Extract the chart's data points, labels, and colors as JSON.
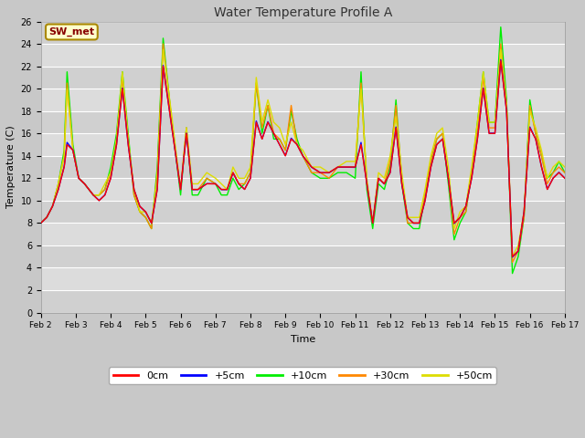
{
  "title": "Water Temperature Profile A",
  "xlabel": "Time",
  "ylabel": "Temperature (C)",
  "ylim": [
    0,
    26
  ],
  "background_color": "#d8d8d8",
  "plot_bg_color": "#d8d8d8",
  "series_colors": {
    "0cm": "#ff0000",
    "+5cm": "#0000ff",
    "+10cm": "#00ee00",
    "+30cm": "#ff8800",
    "+50cm": "#dddd00"
  },
  "xtick_labels": [
    "Feb 2",
    "Feb 3",
    "Feb 4",
    "Feb 5",
    "Feb 6",
    "Feb 7",
    "Feb 8",
    "Feb 9",
    "Feb 10",
    "Feb 11",
    "Feb 12",
    "Feb 13",
    "Feb 14",
    "Feb 15",
    "Feb 16",
    "Feb 17"
  ],
  "xtick_positions": [
    0,
    24,
    48,
    72,
    96,
    120,
    144,
    168,
    192,
    216,
    240,
    264,
    288,
    312,
    336,
    360
  ],
  "ytick_positions": [
    0,
    2,
    4,
    6,
    8,
    10,
    12,
    14,
    16,
    18,
    20,
    22,
    24,
    26
  ],
  "annotation_text": "SW_met",
  "annotation_bg": "#ffffcc",
  "annotation_border": "#aa8800",
  "annotation_text_color": "#880000",
  "legend_entries": [
    "0cm",
    "+5cm",
    "+10cm",
    "+30cm",
    "+50cm"
  ]
}
